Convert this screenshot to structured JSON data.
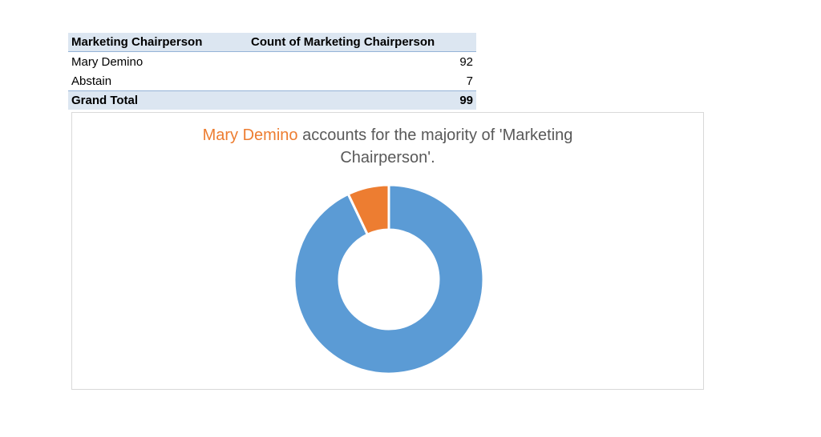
{
  "table": {
    "headers": [
      "Marketing Chairperson",
      "Count of Marketing Chairperson"
    ],
    "rows": [
      {
        "label": "Mary Demino",
        "value": "92"
      },
      {
        "label": "Abstain",
        "value": "7"
      }
    ],
    "total": {
      "label": "Grand Total",
      "value": "99"
    }
  },
  "title": {
    "highlight": "Mary Demino",
    "line1_rest": " accounts for the majority of 'Marketing",
    "line2": "Chairperson'."
  },
  "colors": {
    "primary": "#5b9bd5",
    "secondary": "#ed7d31",
    "header_fill": "#dce6f1"
  },
  "chart_data": {
    "type": "pie",
    "variant": "donut",
    "categories": [
      "Mary Demino",
      "Abstain"
    ],
    "values": [
      92,
      7
    ],
    "colors": [
      "#5b9bd5",
      "#ed7d31"
    ],
    "legend": "none"
  }
}
